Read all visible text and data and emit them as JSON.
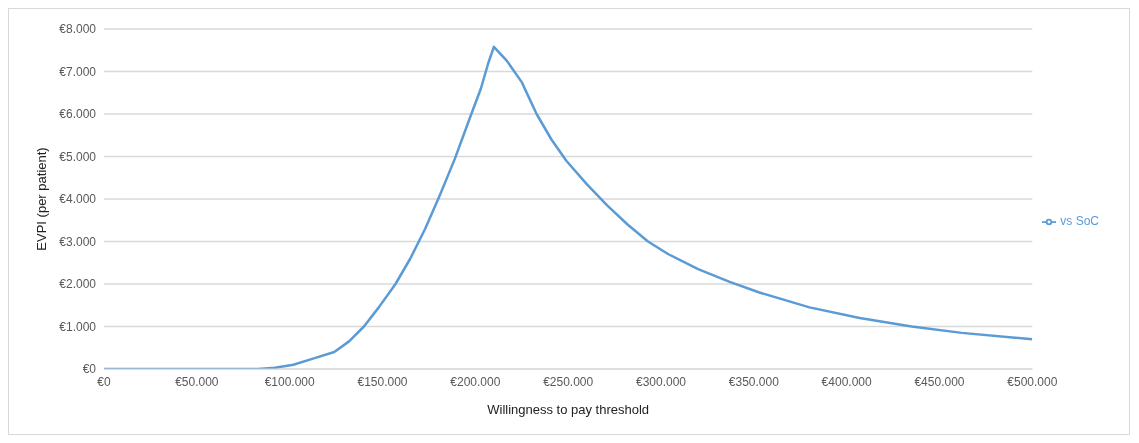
{
  "chart_data": {
    "type": "line",
    "xlabel": "Willingness to pay threshold",
    "ylabel": "EVPI (per patient)",
    "x": [
      0,
      20000,
      40000,
      60000,
      83000,
      92000,
      102000,
      113000,
      124000,
      132000,
      140000,
      148000,
      157000,
      165000,
      173000,
      181000,
      189000,
      197000,
      203000,
      207000,
      210000,
      217000,
      225000,
      233000,
      241000,
      249000,
      260000,
      271000,
      282000,
      293000,
      304000,
      320000,
      337000,
      353000,
      380000,
      407000,
      435000,
      462000,
      500000
    ],
    "series": [
      {
        "name": "vs SoC",
        "color": "#5b9bd5",
        "values": [
          0,
          0,
          0,
          0,
          0,
          30,
          100,
          250,
          400,
          650,
          1000,
          1450,
          2000,
          2600,
          3300,
          4100,
          4950,
          5900,
          6600,
          7200,
          7580,
          7250,
          6750,
          6000,
          5400,
          4900,
          4350,
          3850,
          3400,
          3000,
          2700,
          2350,
          2050,
          1800,
          1450,
          1200,
          1000,
          850,
          700
        ]
      }
    ],
    "xlim": [
      0,
      500000
    ],
    "xticks": [
      {
        "value": 0,
        "label": "€0"
      },
      {
        "value": 50000,
        "label": "€50.000"
      },
      {
        "value": 100000,
        "label": "€100.000"
      },
      {
        "value": 150000,
        "label": "€150.000"
      },
      {
        "value": 200000,
        "label": "€200.000"
      },
      {
        "value": 250000,
        "label": "€250.000"
      },
      {
        "value": 300000,
        "label": "€300.000"
      },
      {
        "value": 350000,
        "label": "€350.000"
      },
      {
        "value": 400000,
        "label": "€400.000"
      },
      {
        "value": 450000,
        "label": "€450.000"
      },
      {
        "value": 500000,
        "label": "€500.000"
      }
    ],
    "ylim": [
      0,
      8000
    ],
    "yticks": [
      {
        "value": 0,
        "label": "€0"
      },
      {
        "value": 1000,
        "label": "€1.000"
      },
      {
        "value": 2000,
        "label": "€2.000"
      },
      {
        "value": 3000,
        "label": "€3.000"
      },
      {
        "value": 4000,
        "label": "€4.000"
      },
      {
        "value": 5000,
        "label": "€5.000"
      },
      {
        "value": 6000,
        "label": "€6.000"
      },
      {
        "value": 7000,
        "label": "€7.000"
      },
      {
        "value": 8000,
        "label": "€8.000"
      }
    ],
    "grid": "y",
    "legend": "right",
    "marker": "none",
    "line_style": "solid"
  }
}
